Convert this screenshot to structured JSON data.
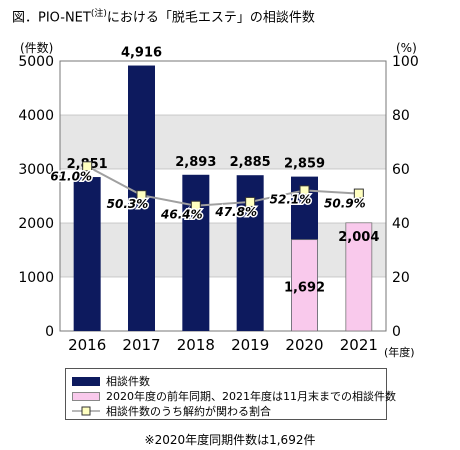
{
  "title": {
    "prefix": "図．PIO-NET",
    "note_mark": "(注)",
    "suffix": "における「脱毛エステ」の相談件数"
  },
  "chart_data": {
    "type": "bar",
    "categories": [
      "2016",
      "2017",
      "2018",
      "2019",
      "2020",
      "2021"
    ],
    "y_left": {
      "label": "(件数)",
      "ylim": [
        0,
        5000
      ],
      "ticks": [
        0,
        1000,
        2000,
        3000,
        4000,
        5000
      ]
    },
    "y_right": {
      "label": "(%)",
      "ylim": [
        0,
        100
      ],
      "ticks": [
        0,
        20,
        40,
        60,
        80,
        100
      ]
    },
    "x_unit": "(年度)",
    "series": [
      {
        "name": "相談件数",
        "type": "bar",
        "color": "#0d1a5e",
        "values": [
          2851,
          4916,
          2893,
          2885,
          2859,
          null
        ],
        "labels": [
          "2,851",
          "4,916",
          "2,893",
          "2,885",
          "2,859",
          ""
        ]
      },
      {
        "name": "2020年度の前年同期、2021年度は11月末までの相談件数",
        "type": "bar",
        "color": "#f9c9ec",
        "values": [
          null,
          null,
          null,
          null,
          1692,
          2004
        ],
        "labels": [
          "",
          "",
          "",
          "",
          "1,692",
          "2,004"
        ]
      },
      {
        "name": "相談件数のうち解約が関わる割合",
        "type": "line",
        "axis": "right",
        "color": "#a0a0a0",
        "marker_color": "#ffffc0",
        "values": [
          61.0,
          50.3,
          46.4,
          47.8,
          52.1,
          50.9
        ],
        "labels": [
          "61.0%",
          "50.3%",
          "46.4%",
          "47.8%",
          "52.1%",
          "50.9%"
        ]
      }
    ],
    "grid": "alternating bands",
    "legend_position": "bottom"
  },
  "footnote": "※2020年度同期件数は1,692件"
}
